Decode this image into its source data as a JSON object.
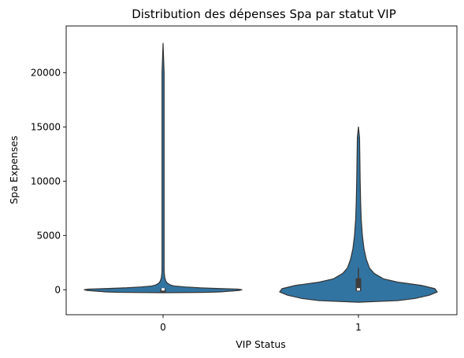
{
  "chart_data": {
    "type": "violin",
    "title": "Distribution des dépenses Spa par statut VIP",
    "xlabel": "VIP Status",
    "ylabel": "Spa Expenses",
    "categories": [
      "0",
      "1"
    ],
    "ylim": [
      -2300,
      24300
    ],
    "yticks": [
      0,
      5000,
      10000,
      15000,
      20000
    ],
    "ytick_labels": [
      "0",
      "5000",
      "10000",
      "15000",
      "20000"
    ],
    "grid": false,
    "violin_color": "#3274a1",
    "edge_color": "#333333",
    "violins": [
      {
        "category": "0",
        "min": 0,
        "max": 22700,
        "q1": 0,
        "median": 0,
        "q3": 50,
        "whisker_high": 120,
        "density_profile": [
          [
            -270,
            0.0
          ],
          [
            -240,
            0.55
          ],
          [
            -200,
            0.72
          ],
          [
            -150,
            0.8
          ],
          [
            -100,
            0.9
          ],
          [
            -60,
            0.97
          ],
          [
            0,
            1.0
          ],
          [
            60,
            0.95
          ],
          [
            110,
            0.72
          ],
          [
            180,
            0.46
          ],
          [
            260,
            0.28
          ],
          [
            350,
            0.14
          ],
          [
            450,
            0.09
          ],
          [
            600,
            0.055
          ],
          [
            800,
            0.035
          ],
          [
            1100,
            0.022
          ],
          [
            1600,
            0.014
          ],
          [
            2300,
            0.008
          ],
          [
            3500,
            0.005
          ],
          [
            6000,
            0.004
          ],
          [
            10000,
            0.003
          ],
          [
            15000,
            0.003
          ],
          [
            20000,
            0.003
          ],
          [
            22700,
            0.0
          ]
        ]
      },
      {
        "category": "1",
        "min": 0,
        "max": 15000,
        "q1": 0,
        "median": 0,
        "q3": 1000,
        "whisker_high": 2000,
        "density_profile": [
          [
            -1150,
            0.0
          ],
          [
            -1000,
            0.5
          ],
          [
            -800,
            0.72
          ],
          [
            -500,
            0.9
          ],
          [
            -200,
            1.0
          ],
          [
            100,
            0.97
          ],
          [
            400,
            0.8
          ],
          [
            700,
            0.5
          ],
          [
            1000,
            0.32
          ],
          [
            1500,
            0.2
          ],
          [
            2000,
            0.14
          ],
          [
            2800,
            0.1
          ],
          [
            3800,
            0.07
          ],
          [
            5000,
            0.05
          ],
          [
            6500,
            0.035
          ],
          [
            8000,
            0.028
          ],
          [
            10000,
            0.022
          ],
          [
            12000,
            0.018
          ],
          [
            14000,
            0.014
          ],
          [
            15000,
            0.0
          ]
        ]
      }
    ]
  }
}
